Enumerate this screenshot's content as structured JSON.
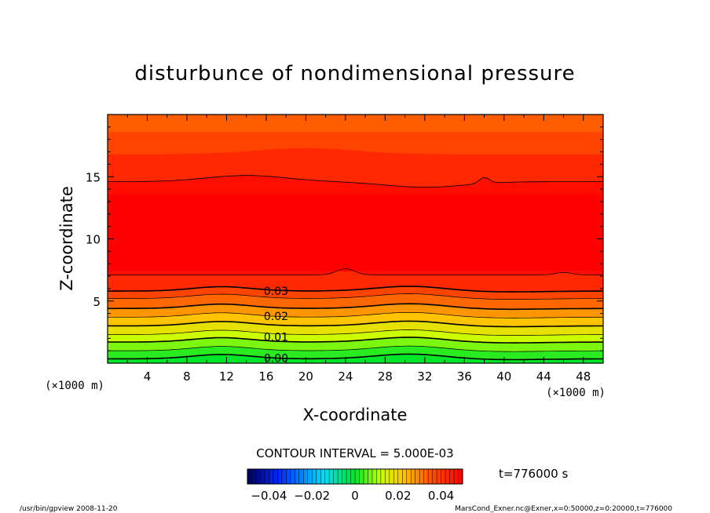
{
  "chart_data": {
    "type": "heatmap",
    "title": "disturbunce of nondimensional pressure",
    "xlabel": "X-coordinate",
    "ylabel": "Z-coordinate",
    "x_unit": "(×1000 m)",
    "y_unit": "(×1000 m)",
    "xlim": [
      0,
      50
    ],
    "ylim": [
      0,
      20
    ],
    "x_ticks": [
      4,
      8,
      12,
      16,
      20,
      24,
      28,
      32,
      36,
      40,
      44,
      48
    ],
    "y_ticks": [
      5,
      10,
      15
    ],
    "contour_interval_text": "CONTOUR INTERVAL = 5.000E-03",
    "contour_labels": [
      {
        "value": "0.03",
        "x": 17,
        "z": 5.8
      },
      {
        "value": "0.02",
        "x": 17,
        "z": 3.8
      },
      {
        "value": "0.01",
        "x": 17,
        "z": 2.1
      },
      {
        "value": "0.00",
        "x": 17,
        "z": 0.4
      }
    ],
    "colorbar": {
      "min": -0.05,
      "max": 0.05,
      "tick_values": [
        -0.04,
        -0.02,
        0,
        0.02,
        0.04
      ],
      "tick_labels": [
        "−0.04",
        "−0.02",
        "0",
        "0.02",
        "0.04"
      ]
    },
    "time_label": "t=776000 s",
    "footer_left": "/usr/bin/gpview  2008-11-20",
    "footer_right": "MarsCond_Exner.nc@Exner,x=0:50000,z=0:20000,t=776000"
  }
}
